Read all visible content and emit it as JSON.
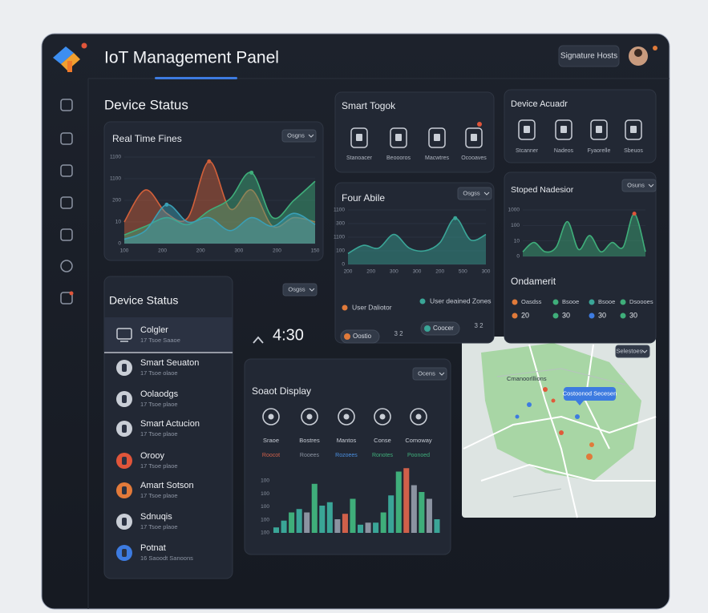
{
  "header": {
    "title": "IoT Management Panel",
    "button": "Signature Hosts"
  },
  "device_status_heading": "Device Status",
  "real_time": {
    "title": "Real Time Fines",
    "dropdown": "Osgns",
    "y_labels": [
      "1100",
      "1100",
      "200",
      "10",
      "0"
    ],
    "x_labels": [
      "100",
      "200",
      "200",
      "300",
      "200",
      "150"
    ],
    "series": [
      {
        "color": "#d2603a",
        "values": [
          0.25,
          0.62,
          0.35,
          0.3,
          0.95,
          0.4,
          0.62,
          0.2,
          0.3,
          0.25
        ]
      },
      {
        "color": "#3fae7a",
        "values": [
          0.1,
          0.2,
          0.3,
          0.22,
          0.38,
          0.52,
          0.82,
          0.3,
          0.5,
          0.72
        ]
      },
      {
        "color": "#3a9fb5",
        "values": [
          0.05,
          0.15,
          0.45,
          0.25,
          0.3,
          0.15,
          0.3,
          0.2,
          0.35,
          0.22
        ]
      }
    ]
  },
  "smart_toggle": {
    "title": "Smart Togok",
    "items": [
      "Stanoacer",
      "Beoooros",
      "Macwtres",
      "Ocooaves"
    ]
  },
  "device_actuator": {
    "title": "Device Acuadr",
    "items": [
      "Stcanner",
      "Nadeos",
      "Fyaorelle",
      "Sbeuos"
    ]
  },
  "four_abile": {
    "title": "Four Abile",
    "dropdown": "Osgss",
    "y_labels": [
      "1100",
      "300",
      "1100",
      "100",
      "0"
    ],
    "x_labels": [
      "200",
      "200",
      "300",
      "300",
      "200",
      "500",
      "300"
    ],
    "series": [
      {
        "color": "#3aa597",
        "values": [
          0.2,
          0.35,
          0.3,
          0.55,
          0.3,
          0.25,
          0.4,
          0.85,
          0.45,
          0.55
        ]
      }
    ],
    "legend": [
      {
        "label": "User Daliotor",
        "color": "#e07a3a"
      },
      {
        "label": "User deained Zones",
        "color": "#3aa597"
      }
    ],
    "pills": [
      {
        "label": "Oostio",
        "color": "#e07a3a",
        "count": "3 2"
      },
      {
        "label": "Coocer",
        "color": "#3aa597",
        "count": "3 2"
      }
    ]
  },
  "speed": {
    "title": "Stoped Nadesior",
    "dropdown": "Osuns",
    "y_labels": [
      "1000",
      "100",
      "10",
      "0"
    ],
    "series": [
      {
        "color": "#3fae7a",
        "values": [
          0.1,
          0.3,
          0.1,
          0.2,
          0.75,
          0.15,
          0.45,
          0.1,
          0.3,
          0.2,
          0.92,
          0.1
        ]
      }
    ]
  },
  "ondamerit": {
    "title": "Ondamerit",
    "items": [
      {
        "label": "Oasdss",
        "color": "#e07a3a",
        "value": 20
      },
      {
        "label": "Bsooe",
        "color": "#3fae7a",
        "value": 30
      },
      {
        "label": "Bsooe",
        "color": "#3aa597",
        "value": 30
      },
      {
        "label": "Dsoooes",
        "color": "#3fae7a",
        "value": 30
      }
    ],
    "value_colors": [
      "#e07a3a",
      "#3fae7a",
      "#3d7be0",
      "#3fae7a"
    ]
  },
  "device_list": {
    "title": "Device Status",
    "dropdown": "Osgss",
    "items": [
      {
        "name": "Colgler",
        "sub": "17 Tsoe Saaoe",
        "color": "#2a3140"
      },
      {
        "name": "Smart Seuaton",
        "sub": "17 Tsoe olaoe",
        "color": "#c9ced6"
      },
      {
        "name": "Oolaodgs",
        "sub": "17 Tsoe plaoe",
        "color": "#c9ced6"
      },
      {
        "name": "Smart Actucion",
        "sub": "17 Tsoe plaoe",
        "color": "#c9ced6"
      },
      {
        "name": "Orooy",
        "sub": "17 Tsoe plaoe",
        "color": "#e0553a"
      },
      {
        "name": "Amart Sotson",
        "sub": "17 Tsoe plaoe",
        "color": "#e27a3a"
      },
      {
        "name": "Sdnuqis",
        "sub": "17 Tsoe plaoe",
        "color": "#c9ced6"
      },
      {
        "name": "Potnat",
        "sub": "16 Saoodt Sanoons",
        "color": "#3d7be0"
      }
    ]
  },
  "clock": "4:30",
  "soat_display": {
    "title": "Soaot Display",
    "dropdown": "Ocens",
    "items": [
      {
        "label": "Sraoe",
        "sub": "Roocot",
        "sub_color": "#d0604a"
      },
      {
        "label": "Bostres",
        "sub": "Rooees",
        "sub_color": "#8b93a1"
      },
      {
        "label": "Mantos",
        "sub": "Rozoees",
        "sub_color": "#4a8fe0"
      },
      {
        "label": "Conse",
        "sub": "Ronotes",
        "sub_color": "#3fae7a"
      },
      {
        "label": "Comoway",
        "sub": "Poonoed",
        "sub_color": "#3fae7a"
      }
    ],
    "y_labels": [
      "100",
      "100",
      "100",
      "100",
      "100"
    ],
    "bars": [
      0.08,
      0.18,
      0.3,
      0.35,
      0.3,
      0.72,
      0.4,
      0.45,
      0.2,
      0.28,
      0.5,
      0.12,
      0.15,
      0.15,
      0.3,
      0.55,
      0.9,
      0.95,
      0.7,
      0.6,
      0.5,
      0.2
    ],
    "bar_colors": [
      "#3aa597",
      "#3aa597",
      "#3fae7a",
      "#3aa597",
      "#8b93a1",
      "#3fae7a",
      "#3aa597",
      "#3aa597",
      "#8b93a1",
      "#d0604a",
      "#3fae7a",
      "#3aa597",
      "#8b93a1",
      "#3aa597",
      "#3fae7a",
      "#3aa597",
      "#3fae7a",
      "#d0604a",
      "#8b93a1",
      "#3fae7a",
      "#8b93a1",
      "#3aa597"
    ]
  },
  "map": {
    "dropdown": "Selestoes",
    "place": "Cmanoorlllions",
    "tooltip": "Costoonod Secesen"
  }
}
